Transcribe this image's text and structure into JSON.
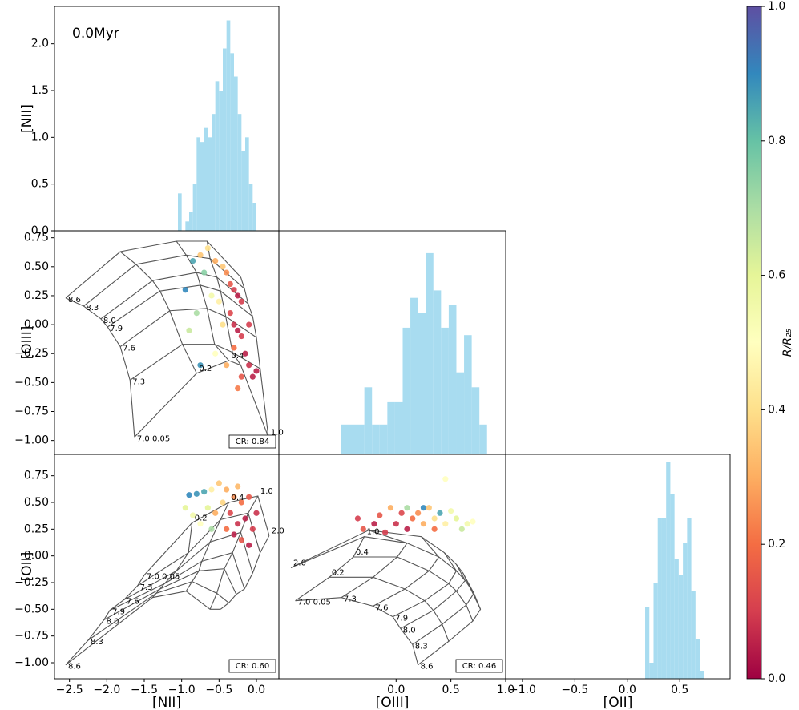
{
  "chart_data": [
    {
      "type": "histogram",
      "annotation": "0.0Myr",
      "ylabel": "[NII]",
      "color": "#a8dcf0",
      "xlim": [
        -2.7,
        0.3
      ],
      "ylim": [
        0,
        2.4
      ],
      "yticks": [
        {
          "value": 0,
          "label": "0.0"
        },
        0.5,
        {
          "value": 1,
          "label": "1.0"
        },
        1.5,
        {
          "value": 2,
          "label": "2.0"
        }
      ],
      "bins": [
        -1.05,
        -1.0,
        -0.95,
        -0.9,
        -0.85,
        -0.8,
        -0.75,
        -0.7,
        -0.65,
        -0.6,
        -0.55,
        -0.5,
        -0.45,
        -0.4,
        -0.35,
        -0.3,
        -0.25,
        -0.2,
        -0.15,
        -0.1,
        -0.05,
        0.0
      ],
      "values": [
        0.4,
        0,
        0.1,
        0.2,
        0.5,
        1.0,
        0.95,
        1.1,
        1.0,
        1.25,
        1.6,
        1.5,
        1.95,
        2.25,
        1.9,
        1.65,
        1.25,
        0.85,
        1.0,
        0.5,
        0.3
      ]
    },
    {
      "type": "scatter",
      "ylabel": "[OIII]",
      "annotation": "CR: 0.84",
      "colormap": "Spectral",
      "xlim": [
        -2.7,
        0.3
      ],
      "ylim": [
        -1.12,
        0.81
      ],
      "yticks": [
        {
          "value": -1,
          "label": "−1.00"
        },
        {
          "value": -0.75,
          "label": "−0.75"
        },
        {
          "value": -0.5,
          "label": "−0.50"
        },
        {
          "value": -0.25,
          "label": "−0.25"
        },
        {
          "value": 0,
          "label": "0.00"
        },
        0.25,
        {
          "value": 0.5,
          "label": "0.50"
        },
        0.75
      ],
      "x": [
        -0.75,
        -0.65,
        -0.55,
        -0.45,
        -0.4,
        -0.35,
        -0.3,
        -0.25,
        -0.2,
        -0.35,
        -0.3,
        -0.25,
        -0.2,
        -0.3,
        -0.15,
        -0.1,
        -0.2,
        -0.25,
        -0.05,
        -0.4,
        -0.95,
        -0.85,
        -0.7,
        -0.8,
        -0.75,
        -0.9,
        -0.6,
        -0.5,
        -0.45,
        -0.55,
        -0.1,
        0.0
      ],
      "y": [
        0.6,
        0.66,
        0.55,
        0.5,
        0.45,
        0.35,
        0.3,
        0.25,
        0.2,
        0.1,
        0.0,
        -0.05,
        -0.1,
        -0.2,
        -0.25,
        -0.35,
        -0.45,
        -0.55,
        -0.45,
        -0.35,
        0.3,
        0.55,
        0.45,
        0.1,
        -0.35,
        -0.05,
        0.25,
        0.2,
        0.0,
        -0.25,
        0.0,
        -0.4
      ],
      "color_values": [
        0.35,
        0.4,
        0.3,
        0.35,
        0.25,
        0.15,
        0.1,
        0.05,
        0.1,
        0.12,
        0.08,
        0.05,
        0.1,
        0.2,
        0.05,
        0.08,
        0.15,
        0.22,
        0.05,
        0.3,
        0.9,
        0.85,
        0.75,
        0.7,
        0.88,
        0.65,
        0.55,
        0.45,
        0.4,
        0.5,
        0.1,
        0.05
      ],
      "model": {
        "x": [
          [
            -2.55,
            -1.82,
            -1.07,
            -0.66,
            -0.21
          ],
          [
            -2.31,
            -1.61,
            -0.94,
            -0.62,
            -0.16
          ],
          [
            -2.08,
            -1.39,
            -0.8,
            -0.53,
            -0.11
          ],
          [
            -1.99,
            -1.29,
            -0.75,
            -0.48,
            -0.05
          ],
          [
            -1.82,
            -1.16,
            -0.66,
            -0.41,
            0.0
          ],
          [
            -1.69,
            -0.99,
            -0.56,
            -0.32,
            0.05
          ],
          [
            -1.63,
            -0.8,
            -0.37,
            -0.21,
            0.16
          ]
        ],
        "y": [
          [
            0.23,
            0.63,
            0.72,
            0.72,
            0.41
          ],
          [
            0.16,
            0.52,
            0.6,
            0.57,
            0.31
          ],
          [
            0.05,
            0.38,
            0.45,
            0.41,
            0.18
          ],
          [
            -0.02,
            0.29,
            0.34,
            0.29,
            0.07
          ],
          [
            -0.19,
            0.12,
            0.14,
            0.07,
            -0.11
          ],
          [
            -0.48,
            -0.17,
            -0.17,
            -0.24,
            -0.38
          ],
          [
            -0.97,
            -0.42,
            -0.31,
            -0.35,
            -0.97
          ]
        ],
        "row_labels": [
          "8.6",
          "8.3",
          "8.0",
          "7.9",
          "7.6",
          "7.3",
          "7.0 0.05"
        ],
        "col_labels": [
          null,
          "0.2",
          "0.4",
          null,
          "1.0"
        ]
      }
    },
    {
      "type": "histogram",
      "color": "#a8dcf0",
      "xlim": [
        -1.07,
        1.0
      ],
      "ylim": [
        0,
        30
      ],
      "bins": [
        -0.5,
        -0.43,
        -0.36,
        -0.29,
        -0.22,
        -0.15,
        -0.08,
        -0.01,
        0.06,
        0.13,
        0.2,
        0.27,
        0.34,
        0.41,
        0.48,
        0.55,
        0.62,
        0.69,
        0.76,
        0.83
      ],
      "values": [
        4,
        4,
        4,
        9,
        4,
        4,
        7,
        7,
        17,
        21,
        19,
        27,
        22,
        17,
        20,
        11,
        16,
        9,
        4
      ]
    },
    {
      "type": "scatter",
      "xlabel": "[NII]",
      "ylabel": "[OII]",
      "annotation": "CR: 0.60",
      "colormap": "Spectral",
      "xlim": [
        -2.7,
        0.3
      ],
      "ylim": [
        -1.15,
        0.95
      ],
      "xticks": [
        {
          "value": -2.5,
          "label": "−2.5"
        },
        {
          "value": -2,
          "label": "−2.0"
        },
        {
          "value": -1.5,
          "label": "−1.5"
        },
        {
          "value": -1,
          "label": "−1.0"
        },
        {
          "value": -0.5,
          "label": "−0.5"
        },
        {
          "value": 0,
          "label": "0.0"
        }
      ],
      "yticks": [
        {
          "value": -1,
          "label": "−1.00"
        },
        {
          "value": -0.75,
          "label": "−0.75"
        },
        {
          "value": -0.5,
          "label": "−0.50"
        },
        {
          "value": -0.25,
          "label": "−0.25"
        },
        {
          "value": 0,
          "label": "0.00"
        },
        0.25,
        {
          "value": 0.5,
          "label": "0.50"
        },
        0.75
      ],
      "x": [
        -0.9,
        -0.8,
        -0.7,
        -0.95,
        -0.85,
        -0.75,
        -0.6,
        -0.5,
        -0.4,
        -0.3,
        -0.2,
        -0.1,
        -0.35,
        -0.25,
        -0.15,
        -0.05,
        -0.3,
        -0.2,
        -0.4,
        -0.55,
        -0.45,
        -0.65,
        0.0,
        -0.1,
        -0.6,
        -0.25
      ],
      "y": [
        0.57,
        0.58,
        0.6,
        0.45,
        0.38,
        0.3,
        0.62,
        0.68,
        0.62,
        0.55,
        0.5,
        0.55,
        0.4,
        0.3,
        0.35,
        0.25,
        0.2,
        0.15,
        0.25,
        0.4,
        0.5,
        0.45,
        0.4,
        0.1,
        0.25,
        0.65
      ],
      "color_values": [
        0.9,
        0.88,
        0.85,
        0.6,
        0.55,
        0.5,
        0.45,
        0.35,
        0.3,
        0.25,
        0.2,
        0.15,
        0.12,
        0.08,
        0.05,
        0.1,
        0.05,
        0.15,
        0.2,
        0.3,
        0.38,
        0.6,
        0.08,
        0.05,
        0.7,
        0.32
      ],
      "model": {
        "x": [
          [
            -2.55,
            -1.39,
            -0.94,
            -0.62,
            -0.48
          ],
          [
            -2.25,
            -1.34,
            -0.86,
            -0.53,
            -0.37
          ],
          [
            -2.04,
            -1.29,
            -0.77,
            -0.43,
            -0.27
          ],
          [
            -1.96,
            -1.23,
            -0.73,
            -0.32,
            -0.16
          ],
          [
            -1.77,
            -1.07,
            -0.62,
            -0.21,
            -0.05
          ],
          [
            -1.59,
            -0.91,
            -0.48,
            -0.11,
            0.05
          ],
          [
            -1.5,
            -0.86,
            -0.37,
            0.02,
            0.17
          ]
        ],
        "y": [
          [
            -1.02,
            -0.39,
            -0.33,
            -0.5,
            -0.5
          ],
          [
            -0.79,
            -0.35,
            -0.24,
            -0.35,
            -0.44
          ],
          [
            -0.6,
            -0.31,
            -0.14,
            -0.12,
            -0.36
          ],
          [
            -0.51,
            -0.26,
            -0.05,
            0.03,
            -0.31
          ],
          [
            -0.41,
            -0.14,
            0.13,
            0.22,
            -0.16
          ],
          [
            -0.28,
            0.03,
            0.34,
            0.4,
            0.03
          ],
          [
            -0.18,
            0.31,
            0.5,
            0.56,
            0.19
          ]
        ],
        "row_labels": [
          "8.6",
          "8.3",
          "8.0",
          "7.9",
          "7.6",
          "7.3",
          "7.0 0.05"
        ],
        "col_labels": [
          null,
          "0.2",
          "0.4",
          "1.0",
          "2.0"
        ]
      }
    },
    {
      "type": "scatter",
      "xlabel": "[OIII]",
      "annotation": "CR: 0.46",
      "colormap": "Spectral",
      "xlim": [
        -1.07,
        1.0
      ],
      "ylim": [
        -1.15,
        0.95
      ],
      "xticks": [
        {
          "value": 0,
          "label": "0.0"
        },
        0.5,
        {
          "value": 1,
          "label": "1.0"
        }
      ],
      "x": [
        -0.35,
        -0.3,
        -0.2,
        -0.1,
        0.0,
        0.05,
        0.1,
        0.15,
        0.2,
        0.25,
        0.3,
        0.35,
        0.4,
        0.45,
        0.5,
        0.55,
        0.6,
        0.65,
        0.7,
        0.25,
        -0.05,
        0.35,
        -0.15,
        0.45,
        0.1
      ],
      "y": [
        0.35,
        0.25,
        0.3,
        0.22,
        0.3,
        0.4,
        0.25,
        0.35,
        0.4,
        0.3,
        0.45,
        0.35,
        0.4,
        0.3,
        0.42,
        0.35,
        0.25,
        0.3,
        0.32,
        0.45,
        0.45,
        0.25,
        0.38,
        0.72,
        0.45
      ],
      "color_values": [
        0.1,
        0.15,
        0.05,
        0.1,
        0.08,
        0.12,
        0.05,
        0.2,
        0.25,
        0.3,
        0.35,
        0.4,
        0.85,
        0.45,
        0.55,
        0.6,
        0.65,
        0.55,
        0.5,
        0.9,
        0.3,
        0.2,
        0.15,
        0.5,
        0.7
      ],
      "model": {
        "x": [
          [
            0.2,
            0.48,
            0.7,
            0.77,
            0.7
          ],
          [
            0.15,
            0.42,
            0.64,
            0.71,
            0.61
          ],
          [
            0.04,
            0.34,
            0.55,
            0.63,
            0.55
          ],
          [
            -0.03,
            0.26,
            0.48,
            0.55,
            0.44
          ],
          [
            -0.21,
            0.08,
            0.3,
            0.39,
            0.23
          ],
          [
            -0.5,
            -0.21,
            0.01,
            0.1,
            -0.25
          ],
          [
            -0.92,
            -0.61,
            -0.39,
            -0.29,
            -0.96
          ]
        ],
        "y": [
          [
            -1.02,
            -0.8,
            -0.61,
            -0.5,
            -0.35
          ],
          [
            -0.83,
            -0.64,
            -0.46,
            -0.35,
            -0.16
          ],
          [
            -0.68,
            -0.51,
            -0.33,
            -0.23,
            -0.08
          ],
          [
            -0.57,
            -0.42,
            -0.26,
            -0.14,
            0.03
          ],
          [
            -0.47,
            -0.31,
            -0.14,
            -0.01,
            0.18
          ],
          [
            -0.39,
            -0.2,
            -0.01,
            0.12,
            0.24
          ],
          [
            -0.42,
            -0.2,
            -0.01,
            0.18,
            -0.11
          ]
        ],
        "row_labels": [
          "8.6",
          "8.3",
          "8.0",
          "7.9",
          "7.6",
          "7.3",
          "7.0 0.05"
        ],
        "col_labels": [
          null,
          "0.2",
          "0.4",
          "1.0",
          "2.0"
        ]
      }
    },
    {
      "type": "histogram",
      "xlabel": "[OII]",
      "color": "#a8dcf0",
      "xlim": [
        -1.16,
        0.98
      ],
      "ylim": [
        0,
        28
      ],
      "xticks": [
        {
          "value": -1,
          "label": "−1.0"
        },
        {
          "value": -0.5,
          "label": "−0.5"
        },
        {
          "value": 0,
          "label": "0.0"
        },
        0.5
      ],
      "bins": [
        0.17,
        0.21,
        0.25,
        0.29,
        0.33,
        0.37,
        0.41,
        0.45,
        0.49,
        0.53,
        0.57,
        0.61,
        0.65,
        0.69,
        0.73
      ],
      "values": [
        9,
        2,
        12,
        20,
        20,
        27,
        23,
        15,
        13,
        17,
        20,
        11,
        5,
        1
      ]
    },
    {
      "type": "colorbar",
      "label": "R/R₂₅",
      "colormap": "Spectral",
      "ylim": [
        0,
        1
      ],
      "yticks": [
        {
          "value": 0,
          "label": "0.0"
        },
        0.2,
        0.4,
        0.6,
        0.8,
        {
          "value": 1,
          "label": "1.0"
        }
      ]
    }
  ]
}
